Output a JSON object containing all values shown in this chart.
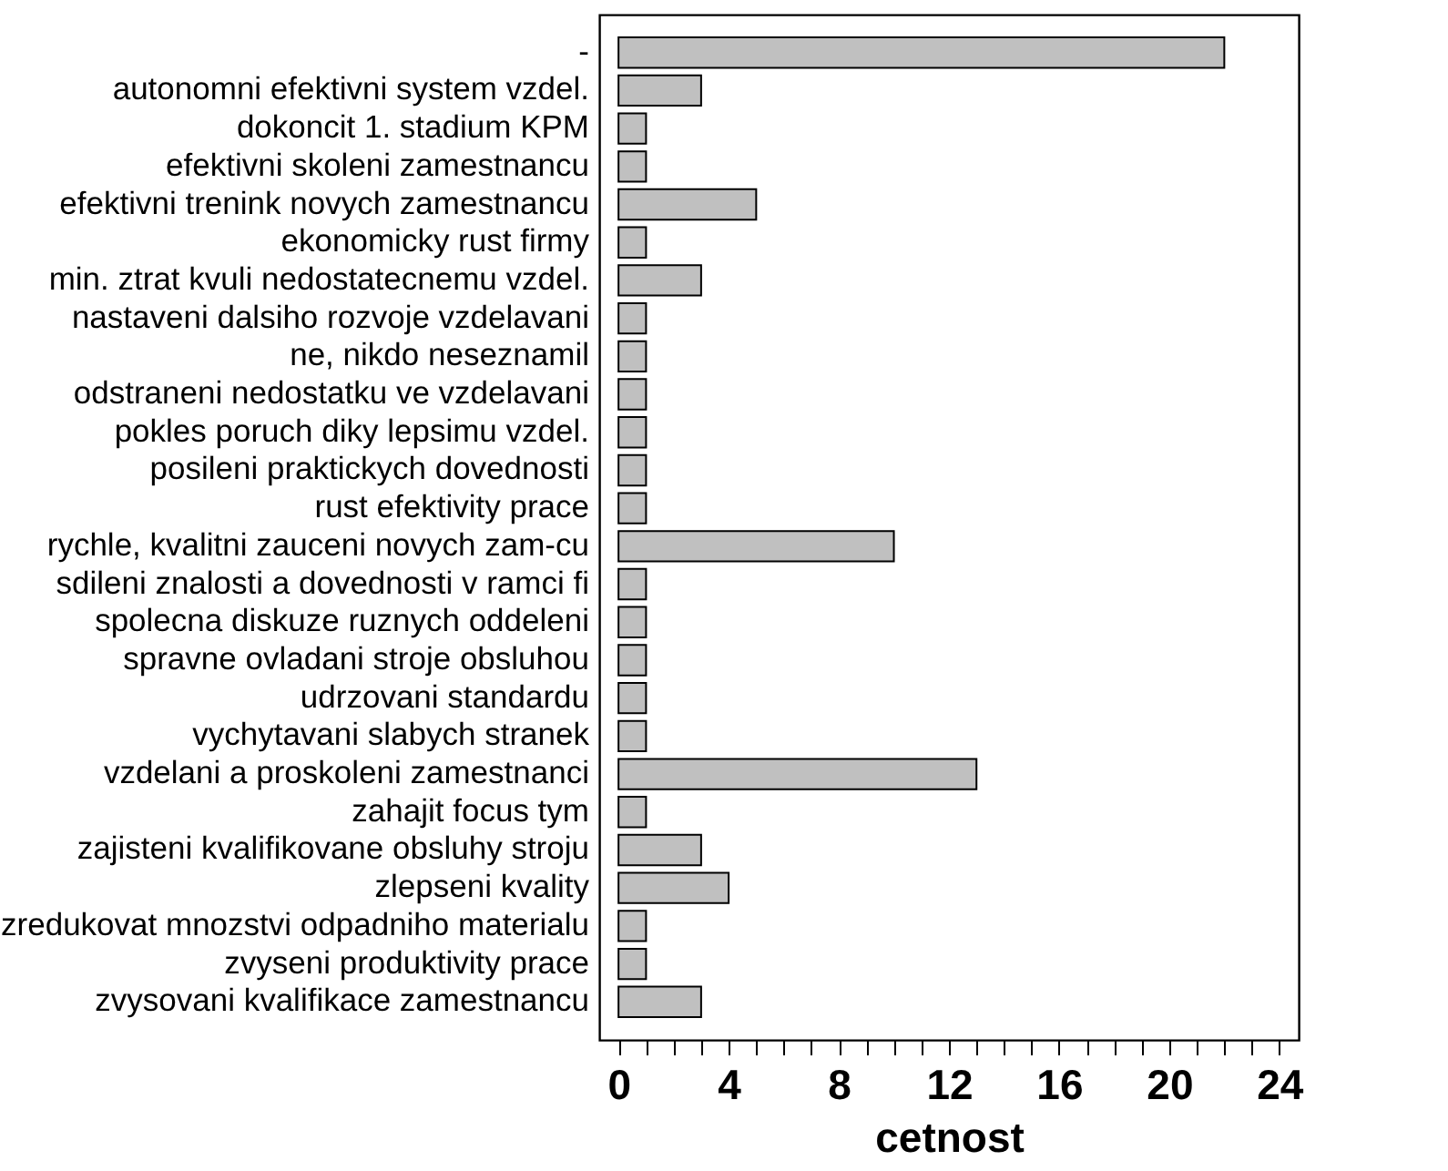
{
  "chart_data": {
    "type": "bar",
    "orientation": "horizontal",
    "xlabel": "cetnost",
    "color": "#c0c0c0",
    "categories": [
      "-",
      "autonomni efektivni system vzdel.",
      "dokoncit 1. stadium KPM",
      "efektivni skoleni zamestnancu",
      "efektivni trenink novych zamestnancu",
      "ekonomicky rust firmy",
      "min. ztrat kvuli nedostatecnemu vzdel.",
      "nastaveni dalsiho rozvoje vzdelavani",
      "ne, nikdo neseznamil",
      "odstraneni nedostatku ve vzdelavani",
      "pokles poruch diky lepsimu vzdel.",
      "posileni praktickych dovednosti",
      "rust efektivity prace",
      "rychle, kvalitni zauceni novych zam-cu",
      "sdileni znalosti a dovednosti v ramci fi",
      "spolecna diskuze ruznych oddeleni",
      "spravne ovladani stroje obsluhou",
      "udrzovani standardu",
      "vychytavani slabych stranek",
      "vzdelani a proskoleni zamestnanci",
      "zahajit focus tym",
      "zajisteni kvalifikovane obsluhy stroju",
      "zlepseni kvality",
      "zredukovat mnozstvi odpadniho materialu",
      "zvyseni produktivity prace",
      "zvysovani kvalifikace zamestnancu"
    ],
    "values": [
      22,
      3,
      1,
      1,
      5,
      1,
      3,
      1,
      1,
      1,
      1,
      1,
      1,
      10,
      1,
      1,
      1,
      1,
      1,
      13,
      1,
      3,
      4,
      1,
      1,
      3
    ],
    "xlim": [
      -0.7,
      24.7
    ],
    "xticks": [
      0,
      {
        "value": 1,
        "label": null
      },
      {
        "value": 2,
        "label": null
      },
      {
        "value": 3,
        "label": null
      },
      4,
      {
        "value": 5,
        "label": null
      },
      {
        "value": 6,
        "label": null
      },
      {
        "value": 7,
        "label": null
      },
      8,
      {
        "value": 9,
        "label": null
      },
      {
        "value": 10,
        "label": null
      },
      {
        "value": 11,
        "label": null
      },
      12,
      {
        "value": 13,
        "label": null
      },
      {
        "value": 14,
        "label": null
      },
      {
        "value": 15,
        "label": null
      },
      16,
      {
        "value": 17,
        "label": null
      },
      {
        "value": 18,
        "label": null
      },
      {
        "value": 19,
        "label": null
      },
      20,
      {
        "value": 21,
        "label": null
      },
      {
        "value": 22,
        "label": null
      },
      {
        "value": 23,
        "label": null
      },
      24
    ],
    "grid": false
  }
}
